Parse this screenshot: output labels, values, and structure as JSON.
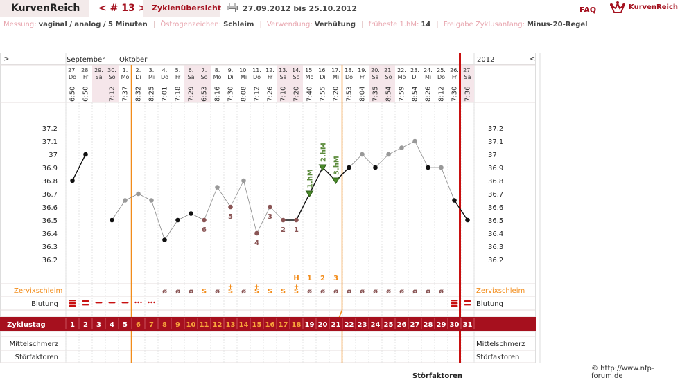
{
  "header": {
    "app_name": "KurvenReich",
    "cycle_nav": "< # 13 >",
    "overview_label": "Zyklenübersicht",
    "print_icon": "printer-icon",
    "date_range": "27.09.2012 bis 25.10.2012",
    "faq_label": "FAQ",
    "brand_icon": "crown-logo-icon",
    "brand_text": "KurvenReich"
  },
  "info": {
    "method_label": "Messung:",
    "method_value": "vaginal / analog / 5 Minuten",
    "estrogen_label": "Östrogenzeichen:",
    "estrogen_value": "Schleim",
    "use_label": "Verwendung:",
    "use_value": "Verhütung",
    "earliest_label": "früheste 1.hM:",
    "earliest_value": "14",
    "release_label": "Freigabe Zyklusanfang:",
    "release_value": "Minus-20-Regel"
  },
  "chart_data": {
    "type": "line",
    "left_arrow": ">",
    "right_arrow": "<",
    "months": [
      {
        "label": "September",
        "col": 0
      },
      {
        "label": "Oktober",
        "col": 4
      }
    ],
    "year": "2012",
    "dates": [
      "27.",
      "28.",
      "29.",
      "30.",
      "1.",
      "2.",
      "3.",
      "4.",
      "5.",
      "6.",
      "7.",
      "8.",
      "9.",
      "10.",
      "11.",
      "12.",
      "13.",
      "14.",
      "15.",
      "16.",
      "17.",
      "18.",
      "19.",
      "20.",
      "21.",
      "22.",
      "23.",
      "24.",
      "25.",
      "26.",
      "27."
    ],
    "weekdays": [
      "Do",
      "Fr",
      "Sa",
      "So",
      "Mo",
      "Di",
      "Mi",
      "Do",
      "Fr",
      "Sa",
      "So",
      "Mo",
      "Di",
      "Mi",
      "Do",
      "Fr",
      "Sa",
      "So",
      "Mo",
      "Di",
      "Mi",
      "Do",
      "Fr",
      "Sa",
      "So",
      "Mo",
      "Di",
      "Mi",
      "Do",
      "Fr",
      "Sa"
    ],
    "times": [
      "6:50",
      "6:50",
      "",
      "7:12",
      "7:37",
      "8:32",
      "8:25",
      "7:01",
      "7:18",
      "7:29",
      "6:53",
      "8:16",
      "7:30",
      "8:08",
      "7:12",
      "7:26",
      "7:10",
      "7:20",
      "7:40",
      "7:55",
      "7:20",
      "7:53",
      "8:04",
      "7:35",
      "8:54",
      "7:59",
      "8:54",
      "8:26",
      "8:12",
      "7:30",
      "7:36"
    ],
    "cycle_days": [
      "1",
      "2",
      "3",
      "4",
      "5",
      "6",
      "7",
      "8",
      "9",
      "10",
      "11",
      "12",
      "13",
      "14",
      "15",
      "16",
      "17",
      "18",
      "19",
      "20",
      "21",
      "22",
      "23",
      "24",
      "25",
      "26",
      "27",
      "28",
      "29",
      "30",
      "31"
    ],
    "temperatures": [
      36.8,
      37.0,
      null,
      36.5,
      36.65,
      36.7,
      36.65,
      36.35,
      36.5,
      36.55,
      36.5,
      36.75,
      36.6,
      36.8,
      36.4,
      36.6,
      36.5,
      36.5,
      36.7,
      36.9,
      36.8,
      36.9,
      37.0,
      36.9,
      37.0,
      37.05,
      37.1,
      36.9,
      36.9,
      36.65,
      36.5
    ],
    "point_colors": [
      "#111111",
      "#111111",
      null,
      "#111111",
      "#999999",
      "#999999",
      "#999999",
      "#111111",
      "#111111",
      "#111111",
      "#8a5555",
      "#999999",
      "#8a5555",
      "#999999",
      "#8a5555",
      "#8a5555",
      "#8a5555",
      "#8a5555",
      "#5a8a3a",
      "#5a8a3a",
      "#5a8a3a",
      "#111111",
      "#999999",
      "#111111",
      "#999999",
      "#999999",
      "#999999",
      "#111111",
      "#999999",
      "#111111",
      "#111111"
    ],
    "y_ticks": [
      "37.2",
      "37.1",
      "37",
      "36.9",
      "36.8",
      "36.7",
      "36.6",
      "36.5",
      "36.4",
      "36.3",
      "36.2"
    ],
    "y_tick_values": [
      37.2,
      37.1,
      37.0,
      36.9,
      36.8,
      36.7,
      36.6,
      36.5,
      36.4,
      36.3,
      36.2
    ],
    "ylim": [
      36.1,
      37.35
    ],
    "low_count_labels": [
      {
        "col": 10,
        "label": "6"
      },
      {
        "col": 12,
        "label": "5"
      },
      {
        "col": 14,
        "label": "4"
      },
      {
        "col": 15,
        "label": "3"
      },
      {
        "col": 16,
        "label": "2"
      },
      {
        "col": 17,
        "label": "1"
      }
    ],
    "high_labels": [
      {
        "col": 18,
        "label": "1.hM"
      },
      {
        "col": 19,
        "label": "2.hM"
      },
      {
        "col": 20,
        "label": "3.hM"
      }
    ],
    "peak_count_labels": [
      {
        "col": 17,
        "label": "H"
      },
      {
        "col": 18,
        "label": "1"
      },
      {
        "col": 19,
        "label": "2"
      },
      {
        "col": 20,
        "label": "3"
      }
    ],
    "mucus_label": "Zervixschleim",
    "mucus": [
      "",
      "",
      "",
      "",
      "",
      "",
      "",
      "ø",
      "ø",
      "ø",
      "S",
      "ø",
      "S+",
      "ø",
      "S+",
      "S",
      "S",
      "S+",
      "ø",
      "ø",
      "ø",
      "ø",
      "ø",
      "ø",
      "ø",
      "ø",
      "ø",
      "ø",
      "ø",
      "",
      ""
    ],
    "bleeding_label": "Blutung",
    "bleeding": [
      "heavy",
      "medium",
      "light",
      "light",
      "light",
      "spotting",
      "spotting",
      "",
      "",
      "",
      "",
      "",
      "",
      "",
      "",
      "",
      "",
      "",
      "",
      "",
      "",
      "",
      "",
      "",
      "",
      "",
      "",
      "",
      "",
      "heavy",
      "medium"
    ],
    "cycle_day_label": "Zyklustag",
    "pain_label": "Mittelschmerz",
    "disturb_label": "Störfaktoren",
    "high_temp_colors": {
      "normal": "#111111",
      "excluded": "#999999",
      "low_count": "#8a5555",
      "high": "#5a8a3a"
    },
    "ovulation_day_col": 20,
    "cycle_start_line_col": 5,
    "cycle_end_col": 29
  },
  "footer": {
    "copyright": "© http://www.nfp-forum.de",
    "cut_label": "Störfaktoren"
  }
}
